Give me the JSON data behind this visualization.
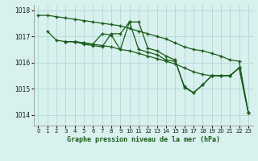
{
  "title": "Graphe pression niveau de la mer (hPa)",
  "background_color": "#d8f0ee",
  "grid_color": "#b8dbd8",
  "line_color": "#1a5c1a",
  "xlim": [
    -0.5,
    23.5
  ],
  "ylim": [
    1013.6,
    1018.2
  ],
  "yticks": [
    1014,
    1015,
    1016,
    1017,
    1018
  ],
  "xticks": [
    0,
    1,
    2,
    3,
    4,
    5,
    6,
    7,
    8,
    9,
    10,
    11,
    12,
    13,
    14,
    15,
    16,
    17,
    18,
    19,
    20,
    21,
    22,
    23
  ],
  "series": [
    {
      "x": [
        0,
        1,
        2,
        3,
        4,
        5,
        6,
        7,
        8,
        9,
        10,
        11,
        12,
        13,
        14,
        15,
        16,
        17,
        18,
        19,
        20,
        21,
        22,
        23
      ],
      "y": [
        1017.8,
        1017.8,
        1017.75,
        1017.7,
        1017.65,
        1017.6,
        1017.55,
        1017.5,
        1017.45,
        1017.4,
        1017.3,
        1017.2,
        1017.1,
        1017.0,
        1016.9,
        1016.75,
        1016.6,
        1016.5,
        1016.45,
        1016.35,
        1016.25,
        1016.1,
        1016.05,
        1014.1
      ]
    },
    {
      "x": [
        1,
        2,
        3,
        4,
        5,
        6,
        7,
        8,
        9,
        10,
        11,
        12,
        13,
        14,
        15,
        16,
        17,
        18,
        19,
        20,
        21,
        22,
        23
      ],
      "y": [
        1017.2,
        1016.85,
        1016.8,
        1016.8,
        1016.75,
        1016.7,
        1016.65,
        1016.6,
        1016.5,
        1016.45,
        1016.35,
        1016.25,
        1016.15,
        1016.05,
        1015.95,
        1015.8,
        1015.65,
        1015.55,
        1015.5,
        1015.5,
        1015.5,
        1015.8,
        1014.1
      ]
    },
    {
      "x": [
        3,
        4,
        5,
        6,
        7,
        8,
        9,
        10,
        11,
        12,
        13,
        14,
        15,
        16,
        17,
        18,
        19,
        20,
        21,
        22
      ],
      "y": [
        1016.8,
        1016.8,
        1016.75,
        1016.7,
        1017.1,
        1017.05,
        1016.5,
        1017.55,
        1017.55,
        1016.55,
        1016.45,
        1016.25,
        1016.1,
        1015.05,
        1014.85,
        1015.15,
        1015.5,
        1015.5,
        1015.5,
        1015.8
      ]
    },
    {
      "x": [
        3,
        4,
        5,
        6,
        7,
        8,
        9,
        10,
        11,
        12,
        13,
        14,
        15,
        16,
        17,
        18,
        19,
        20,
        21,
        22,
        23
      ],
      "y": [
        1016.8,
        1016.8,
        1016.7,
        1016.65,
        1016.6,
        1017.1,
        1017.1,
        1017.55,
        1016.5,
        1016.4,
        1016.3,
        1016.1,
        1016.05,
        1015.1,
        1014.85,
        1015.15,
        1015.5,
        1015.5,
        1015.5,
        1015.8,
        1014.1
      ]
    }
  ]
}
